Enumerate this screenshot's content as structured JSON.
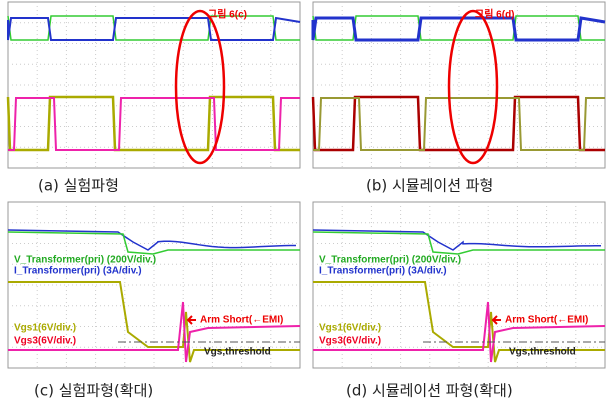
{
  "panels": [
    {
      "caption": "(a) 실험파형",
      "annotation": "그림 6(c)"
    },
    {
      "caption": "(b) 시뮬레이션 파형",
      "annotation": "그림 6(d)"
    },
    {
      "caption": "(c) 실험파형(확대)",
      "labels": {
        "v_transformer": "V_Transformer(pri) (200V/div.)",
        "i_transformer": "I_Transformer(pri) (3A/div.)",
        "vgs1": "Vgs1(6V/div.)",
        "vgs3": "Vgs3(6V/div.)",
        "arm_short": "Arm Short(←EMI)",
        "threshold": "Vgs,threshold"
      }
    },
    {
      "caption": "(d) 시뮬레이션 파형(확대)",
      "labels": {
        "v_transformer": "V_Transformer(pri) (200V/div.)",
        "i_transformer": "I_Transformer(pri) (3A/div.)",
        "vgs1": "Vgs1(6V/div.)",
        "vgs3": "Vgs3(6V/div.)",
        "arm_short": "Arm Short(←EMI)",
        "threshold": "Vgs,threshold"
      }
    }
  ]
}
